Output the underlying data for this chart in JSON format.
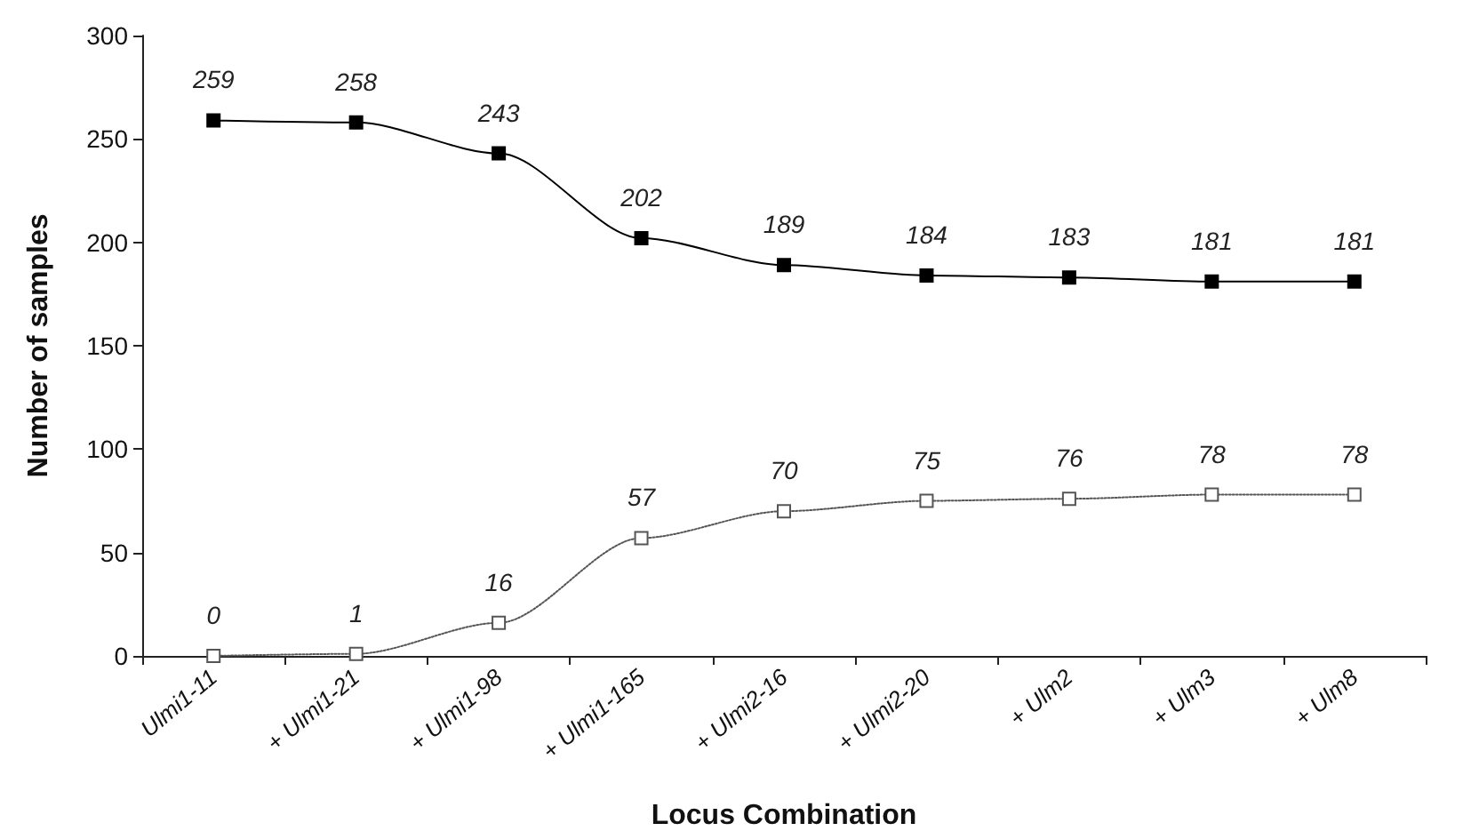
{
  "chart_data": {
    "type": "line",
    "xlabel": "Locus Combination",
    "ylabel": "Number of samples",
    "categories": [
      "Ulmi1-11",
      "+ Ulmi1-21",
      "+ Ulmi1-98",
      "+ Ulmi1-165",
      "+ Ulmi2-16",
      "+ Ulmi2-20",
      "+ Ulm2",
      "+ Ulm3",
      "+ Ulm8"
    ],
    "series": [
      {
        "color": "#000000",
        "line_style": "solid",
        "values": [
          259,
          258,
          243,
          202,
          189,
          184,
          183,
          181,
          181
        ]
      },
      {
        "color": "#555555",
        "line_style": "dotted",
        "values": [
          0,
          1,
          16,
          57,
          70,
          75,
          76,
          78,
          78
        ]
      }
    ],
    "ylim": [
      0,
      300
    ],
    "yticks": [
      0,
      50,
      100,
      150,
      200,
      250,
      300
    ],
    "grid": false,
    "marker": "square",
    "data_labels": true
  }
}
